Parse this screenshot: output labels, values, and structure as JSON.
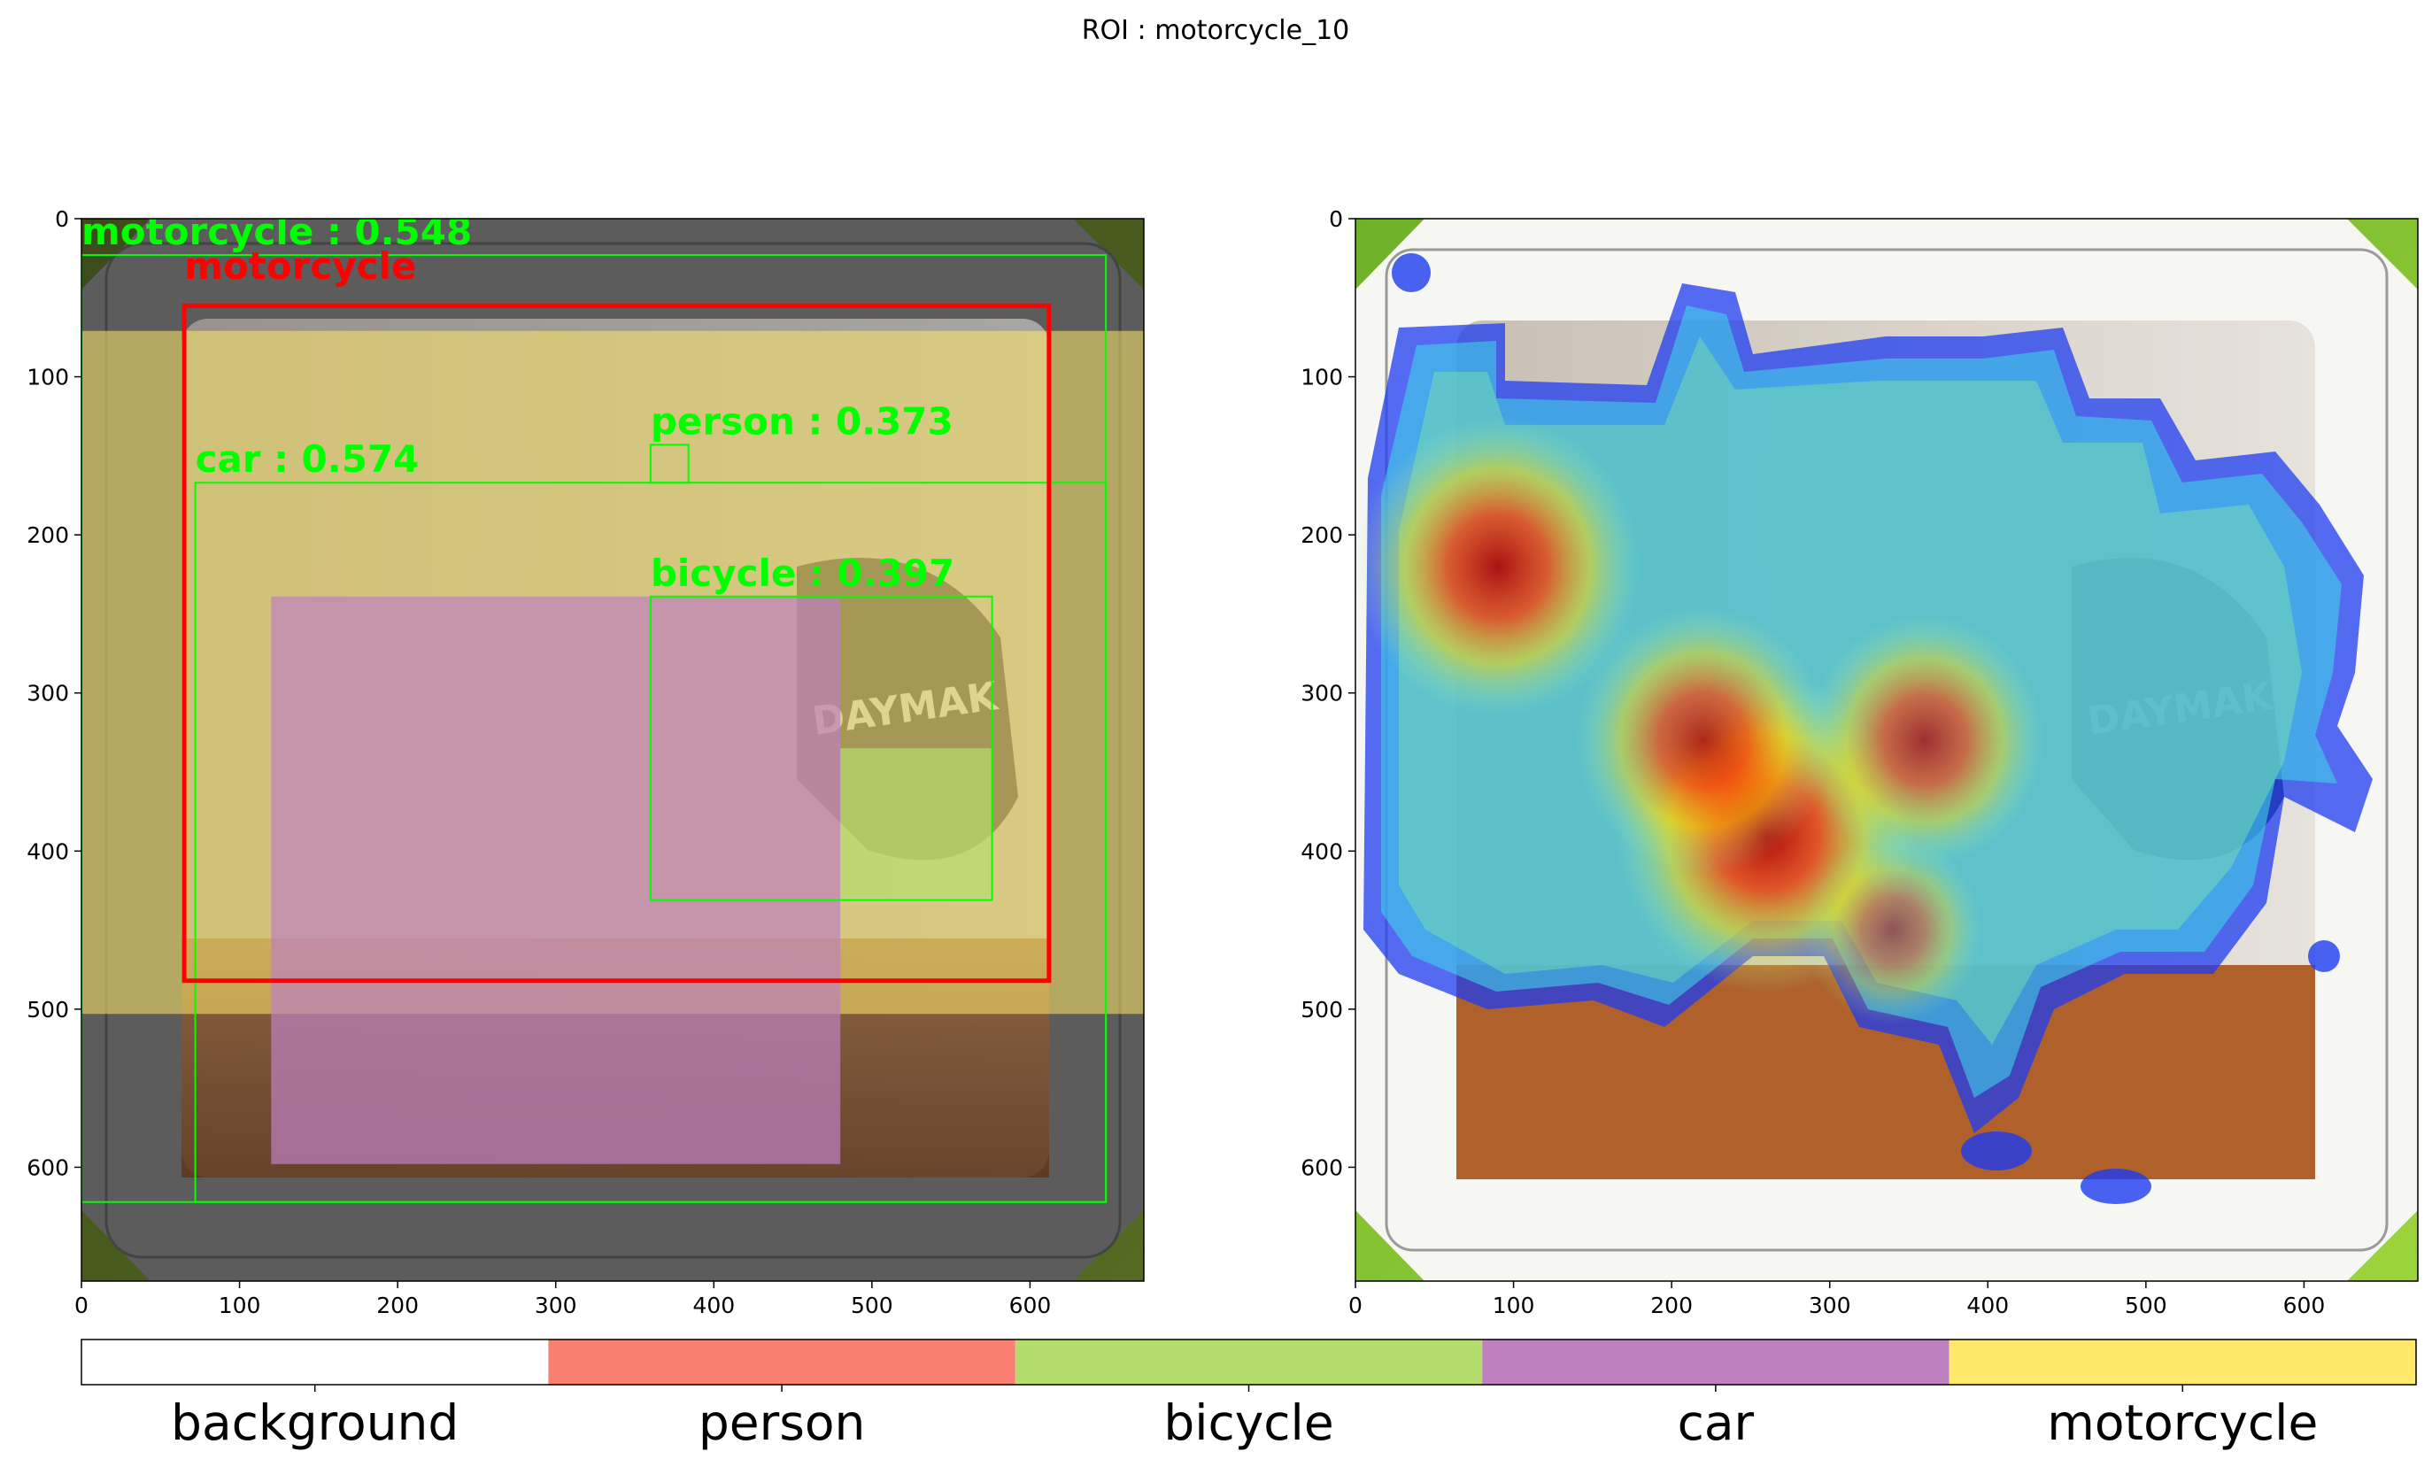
{
  "figure": {
    "title": "ROI : motorcycle_10"
  },
  "colors": {
    "background": "#ffffff",
    "person": "#fa8072",
    "bicycle": "#b5dd6e",
    "car": "#bf80bf",
    "motorcycle": "#ffe86a",
    "roi_box": "#ff0000",
    "det_box": "#00ff00"
  },
  "chart_data": [
    {
      "type": "heatmap",
      "panel": "left",
      "description_type": "segmentation overlay on image",
      "xlim": [
        0,
        672
      ],
      "ylim": [
        672,
        0
      ],
      "xticks": [
        0,
        100,
        200,
        300,
        400,
        500,
        600
      ],
      "yticks": [
        0,
        100,
        200,
        300,
        400,
        500,
        600
      ],
      "roi_box": {
        "label": "motorcycle",
        "x0": 65,
        "y0": 55,
        "x1": 612,
        "y1": 482
      },
      "detections": [
        {
          "label": "motorcycle : 0.548",
          "x0": 0,
          "y0": 23,
          "x1": 648,
          "y1": 622
        },
        {
          "label": "car : 0.574",
          "x0": 72,
          "y0": 167,
          "x1": 648,
          "y1": 622
        },
        {
          "label": "person : 0.373",
          "x0": 360,
          "y0": 143,
          "x1": 384,
          "y1": 167
        },
        {
          "label": "bicycle : 0.397",
          "x0": 360,
          "y0": 239,
          "x1": 576,
          "y1": 431
        }
      ],
      "regions": [
        {
          "class": "motorcycle",
          "x0": 0,
          "y0": 71,
          "x1": 672,
          "y1": 503
        },
        {
          "class": "car",
          "x0": 120,
          "y0": 239,
          "x1": 480,
          "y1": 598
        },
        {
          "class": "bicycle",
          "x0": 480,
          "y0": 335,
          "x1": 576,
          "y1": 431
        }
      ]
    },
    {
      "type": "heatmap",
      "panel": "right",
      "description_type": "attention heatmap on image",
      "xlim": [
        0,
        672
      ],
      "ylim": [
        672,
        0
      ],
      "xticks": [
        0,
        100,
        200,
        300,
        400,
        500,
        600
      ],
      "yticks": [
        0,
        100,
        200,
        300,
        400,
        500,
        600
      ],
      "hotspots": [
        {
          "x": 90,
          "y": 220,
          "intensity": 0.95
        },
        {
          "x": 260,
          "y": 390,
          "intensity": 1.0
        },
        {
          "x": 220,
          "y": 330,
          "intensity": 0.85
        },
        {
          "x": 360,
          "y": 330,
          "intensity": 0.8
        },
        {
          "x": 340,
          "y": 450,
          "intensity": 0.6
        }
      ]
    }
  ],
  "colorbar": {
    "labels": [
      "background",
      "person",
      "bicycle",
      "car",
      "motorcycle"
    ]
  }
}
